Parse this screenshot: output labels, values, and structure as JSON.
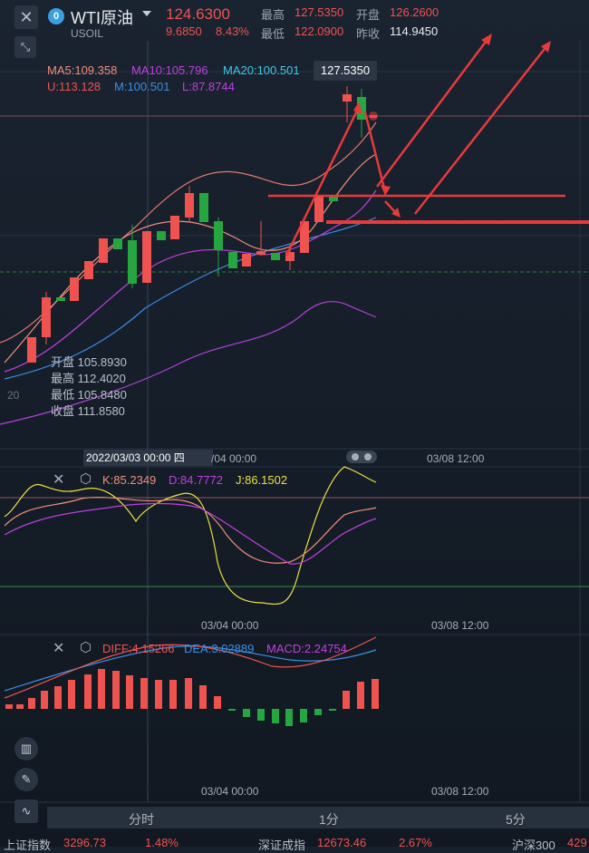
{
  "header": {
    "symbol": "WTI原油",
    "code": "USOIL",
    "logo": "0",
    "price": "124.6300",
    "change": "9.6850",
    "change_pct": "8.43%",
    "high_label": "最高",
    "high": "127.5350",
    "open_label": "开盘",
    "open": "126.2600",
    "low_label": "最低",
    "low": "122.0900",
    "prev_label": "昨收",
    "prev": "114.9450"
  },
  "ma_legend": {
    "ma5": "MA5:109.358",
    "ma10": "MA10:105.796",
    "ma20": "MA20:100.501",
    "u": "U:113.128",
    "m": "M:100.501",
    "l": "L:87.8744"
  },
  "tooltip": {
    "price": "127.5350"
  },
  "left_axis": {
    "label": "20"
  },
  "ohlc": {
    "open": "开盘 105.8930",
    "high": "最高 112.4020",
    "low": "最低 105.8480",
    "close": "收盘 111.8580"
  },
  "time_axis": {
    "crosshair": "2022/03/03 00:00 四",
    "t1": "/04 00:00",
    "t2": "03/08 12:00",
    "t3": "03/04 00:00",
    "t4": "03/08 12:00",
    "t5": "03/04 00:00",
    "t6": "03/08 12:00"
  },
  "kdj": {
    "k": "K:85.2349",
    "d": "D:84.7772",
    "j": "J:86.1502"
  },
  "macd": {
    "diff": "DIFF:4.15266",
    "dea": "DEA:3.02889",
    "macd": "MACD:2.24754"
  },
  "bottom_tabs": [
    "分时",
    "1分",
    "5分"
  ],
  "ticker": {
    "a_name": "上证指数",
    "a_val": "3296.73",
    "a_pct": "1.48%",
    "b_name": "深证成指",
    "b_val": "12673.46",
    "b_pct": "2.67%",
    "c_name": "沪深300",
    "c_val": "429"
  },
  "colors": {
    "up": "#ef5350",
    "down": "#26a641",
    "ma5": "#ef8f7d",
    "ma10": "#c040e0",
    "ma20": "#40c8e8",
    "mid": "#3a8ee6"
  }
}
